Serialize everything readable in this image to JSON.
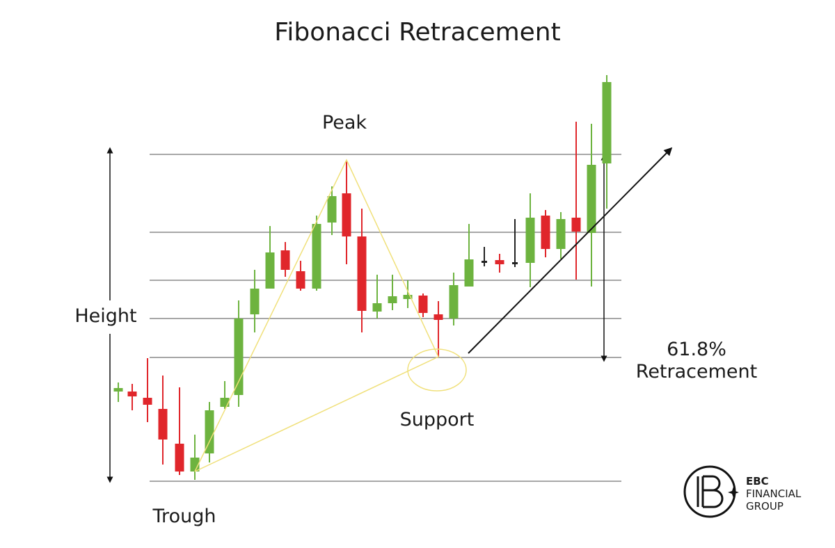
{
  "title": "Fibonacci Retracement",
  "labels": {
    "peak": "Peak",
    "height": "Height",
    "trough": "Trough",
    "support": "Support",
    "retracement": [
      "61.8%",
      "Retracement"
    ]
  },
  "logo": {
    "brand": "EBC",
    "line1": "FINANCIAL",
    "line2": "GROUP"
  }
}
